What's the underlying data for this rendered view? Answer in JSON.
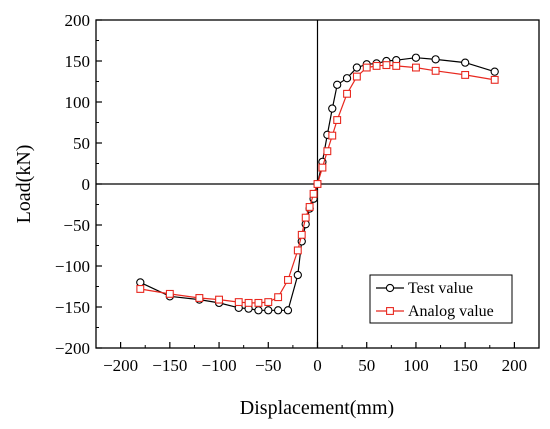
{
  "chart_data": {
    "type": "line",
    "title": "",
    "xlabel": "Displacement(mm)",
    "ylabel": "Load(kN)",
    "xlim": [
      -225,
      225
    ],
    "ylim": [
      -200,
      200
    ],
    "x_ticks": [
      -200,
      -150,
      -100,
      -50,
      0,
      50,
      100,
      150,
      200
    ],
    "x_tick_labels": [
      "−200",
      "−150",
      "−100",
      "−50",
      "0",
      "50",
      "100",
      "150",
      "200"
    ],
    "y_ticks": [
      -200,
      -150,
      -100,
      -50,
      0,
      50,
      100,
      150,
      200
    ],
    "y_tick_labels": [
      "−200",
      "−150",
      "−100",
      "−50",
      "0",
      "50",
      "100",
      "150",
      "200"
    ],
    "grid": false,
    "legend_position": "bottom-right",
    "series": [
      {
        "name": "Test value",
        "color": "#000000",
        "marker": "circle",
        "x": [
          -180,
          -150,
          -120,
          -100,
          -80,
          -70,
          -60,
          -50,
          -40,
          -30,
          -20,
          -16,
          -12,
          -8,
          -4,
          0,
          5,
          10,
          15,
          20,
          30,
          40,
          50,
          60,
          70,
          80,
          100,
          120,
          150,
          180
        ],
        "y": [
          -120,
          -137,
          -141,
          -145,
          -151,
          -152,
          -154,
          -154,
          -154,
          -154,
          -111,
          -70,
          -49,
          -30,
          -18,
          0,
          27,
          60,
          92,
          121,
          129,
          142,
          146,
          147,
          150,
          151,
          154,
          152,
          148,
          137
        ]
      },
      {
        "name": "Analog value",
        "color": "#e8281f",
        "marker": "square",
        "x": [
          -180,
          -150,
          -120,
          -100,
          -80,
          -70,
          -60,
          -50,
          -40,
          -30,
          -20,
          -16,
          -12,
          -8,
          -4,
          0,
          5,
          10,
          15,
          20,
          30,
          40,
          50,
          60,
          70,
          80,
          100,
          120,
          150,
          180
        ],
        "y": [
          -128,
          -134,
          -139,
          -141,
          -144,
          -145,
          -145,
          -144,
          -138,
          -117,
          -81,
          -62,
          -41,
          -28,
          -12,
          0,
          20,
          40,
          59,
          78,
          110,
          131,
          142,
          144,
          145,
          144,
          142,
          138,
          133,
          127
        ]
      }
    ]
  }
}
